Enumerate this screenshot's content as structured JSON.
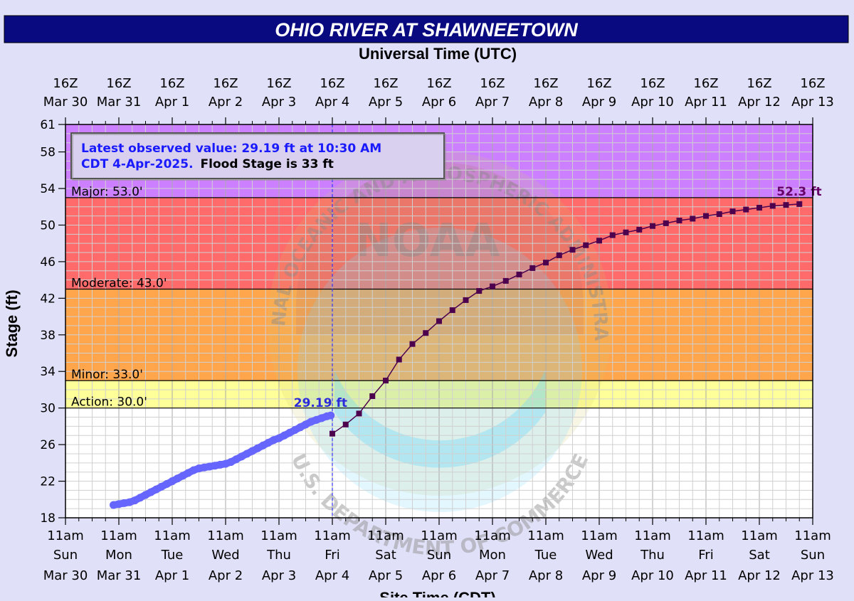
{
  "title": "OHIO RIVER AT SHAWNEETOWN",
  "top_axis_title": "Universal Time (UTC)",
  "bottom_axis_title": "Site Time (CDT)",
  "y_axis_title": "Stage (ft)",
  "info_box": {
    "line1": "Latest observed value: 29.19 ft at 10:30 AM",
    "line2_blue": "CDT 4-Apr-2025.",
    "line2_black": "Flood Stage is 33 ft"
  },
  "watermark": {
    "top_text": "NATIONAL OCEANIC AND ATMOSPHERIC ADMINISTRATION",
    "bottom_text": "U.S. DEPARTMENT OF COMMERCE",
    "logo_text": "NOAA"
  },
  "colors": {
    "title_bar": "#0a0a80",
    "background": "#e0e0f8",
    "major": "#cc80ff",
    "moderate": "#ff6a6a",
    "minor": "#ffa64d",
    "action": "#ffff99",
    "normal": "#ffffff",
    "observed": "#6666ff",
    "forecast": "#4d004d"
  },
  "chart_data": {
    "type": "line",
    "title": "OHIO RIVER AT SHAWNEETOWN",
    "ylabel": "Stage (ft)",
    "xlabel": "Site Time (CDT)",
    "x_unit": "days since 11am CDT Sun Mar 30",
    "xlim": [
      0,
      14
    ],
    "ylim": [
      18,
      61
    ],
    "yticks": [
      18,
      22,
      26,
      30,
      34,
      38,
      42,
      46,
      50,
      54,
      58,
      61
    ],
    "x_ticks_top": [
      {
        "x": 0,
        "label": "16Z",
        "date": "Mar 30"
      },
      {
        "x": 1,
        "label": "16Z",
        "date": "Mar 31"
      },
      {
        "x": 2,
        "label": "16Z",
        "date": "Apr  1"
      },
      {
        "x": 3,
        "label": "16Z",
        "date": "Apr  2"
      },
      {
        "x": 4,
        "label": "16Z",
        "date": "Apr  3"
      },
      {
        "x": 5,
        "label": "16Z",
        "date": "Apr  4"
      },
      {
        "x": 6,
        "label": "16Z",
        "date": "Apr  5"
      },
      {
        "x": 7,
        "label": "16Z",
        "date": "Apr  6"
      },
      {
        "x": 8,
        "label": "16Z",
        "date": "Apr  7"
      },
      {
        "x": 9,
        "label": "16Z",
        "date": "Apr  8"
      },
      {
        "x": 10,
        "label": "16Z",
        "date": "Apr  9"
      },
      {
        "x": 11,
        "label": "16Z",
        "date": "Apr 10"
      },
      {
        "x": 12,
        "label": "16Z",
        "date": "Apr 11"
      },
      {
        "x": 13,
        "label": "16Z",
        "date": "Apr 12"
      },
      {
        "x": 14,
        "label": "16Z",
        "date": "Apr 13"
      }
    ],
    "x_ticks_bottom": [
      {
        "x": 0,
        "time": "11am",
        "day": "Sun",
        "date": "Mar 30"
      },
      {
        "x": 1,
        "time": "11am",
        "day": "Mon",
        "date": "Mar 31"
      },
      {
        "x": 2,
        "time": "11am",
        "day": "Tue",
        "date": "Apr 1"
      },
      {
        "x": 3,
        "time": "11am",
        "day": "Wed",
        "date": "Apr 2"
      },
      {
        "x": 4,
        "time": "11am",
        "day": "Thu",
        "date": "Apr 3"
      },
      {
        "x": 5,
        "time": "11am",
        "day": "Fri",
        "date": "Apr 4"
      },
      {
        "x": 6,
        "time": "11am",
        "day": "Sat",
        "date": "Apr 5"
      },
      {
        "x": 7,
        "time": "11am",
        "day": "Sun",
        "date": "Apr 6"
      },
      {
        "x": 8,
        "time": "11am",
        "day": "Mon",
        "date": "Apr 7"
      },
      {
        "x": 9,
        "time": "11am",
        "day": "Tue",
        "date": "Apr 8"
      },
      {
        "x": 10,
        "time": "11am",
        "day": "Wed",
        "date": "Apr 9"
      },
      {
        "x": 11,
        "time": "11am",
        "day": "Thu",
        "date": "Apr 10"
      },
      {
        "x": 12,
        "time": "11am",
        "day": "Fri",
        "date": "Apr 11"
      },
      {
        "x": 13,
        "time": "11am",
        "day": "Sat",
        "date": "Apr 12"
      },
      {
        "x": 14,
        "time": "11am",
        "day": "Sun",
        "date": "Apr 13"
      }
    ],
    "flood_categories": [
      {
        "name": "major",
        "label": "Major: 53.0'",
        "stage": 53.0
      },
      {
        "name": "moderate",
        "label": "Moderate: 43.0'",
        "stage": 43.0
      },
      {
        "name": "minor",
        "label": "Minor: 33.0'",
        "stage": 33.0
      },
      {
        "name": "action",
        "label": "Action: 30.0'",
        "stage": 30.0
      }
    ],
    "latest_observed_x": 5,
    "series": [
      {
        "name": "Observed",
        "label": "29.19 ft",
        "x": [
          0.9,
          1.0,
          1.1,
          1.2,
          1.3,
          1.4,
          1.5,
          1.6,
          1.7,
          1.8,
          1.9,
          2.0,
          2.1,
          2.2,
          2.3,
          2.4,
          2.5,
          2.6,
          2.7,
          2.8,
          2.9,
          3.0,
          3.1,
          3.2,
          3.3,
          3.4,
          3.5,
          3.6,
          3.7,
          3.8,
          3.9,
          4.0,
          4.1,
          4.2,
          4.3,
          4.4,
          4.5,
          4.6,
          4.7,
          4.8,
          4.9,
          4.97
        ],
        "values": [
          19.4,
          19.5,
          19.6,
          19.7,
          19.9,
          20.2,
          20.5,
          20.8,
          21.1,
          21.4,
          21.7,
          22.0,
          22.3,
          22.6,
          22.9,
          23.2,
          23.4,
          23.5,
          23.6,
          23.7,
          23.8,
          23.9,
          24.1,
          24.4,
          24.7,
          25.0,
          25.3,
          25.6,
          25.9,
          26.2,
          26.5,
          26.7,
          27.0,
          27.3,
          27.6,
          27.9,
          28.2,
          28.5,
          28.7,
          28.9,
          29.1,
          29.19
        ]
      },
      {
        "name": "Forecast",
        "label": "52.3 ft",
        "x": [
          5.0,
          5.25,
          5.5,
          5.75,
          6.0,
          6.25,
          6.5,
          6.75,
          7.0,
          7.25,
          7.5,
          7.75,
          8.0,
          8.25,
          8.5,
          8.75,
          9.0,
          9.25,
          9.5,
          9.75,
          10.0,
          10.25,
          10.5,
          10.75,
          11.0,
          11.25,
          11.5,
          11.75,
          12.0,
          12.25,
          12.5,
          12.75,
          13.0,
          13.25,
          13.5,
          13.75
        ],
        "values": [
          27.2,
          28.2,
          29.4,
          31.3,
          33.0,
          35.3,
          37.0,
          38.2,
          39.5,
          40.7,
          41.8,
          42.8,
          43.3,
          43.9,
          44.6,
          45.3,
          45.9,
          46.7,
          47.3,
          47.8,
          48.3,
          48.9,
          49.2,
          49.5,
          49.9,
          50.2,
          50.5,
          50.7,
          51.0,
          51.2,
          51.5,
          51.7,
          51.9,
          52.1,
          52.2,
          52.3
        ]
      }
    ]
  }
}
